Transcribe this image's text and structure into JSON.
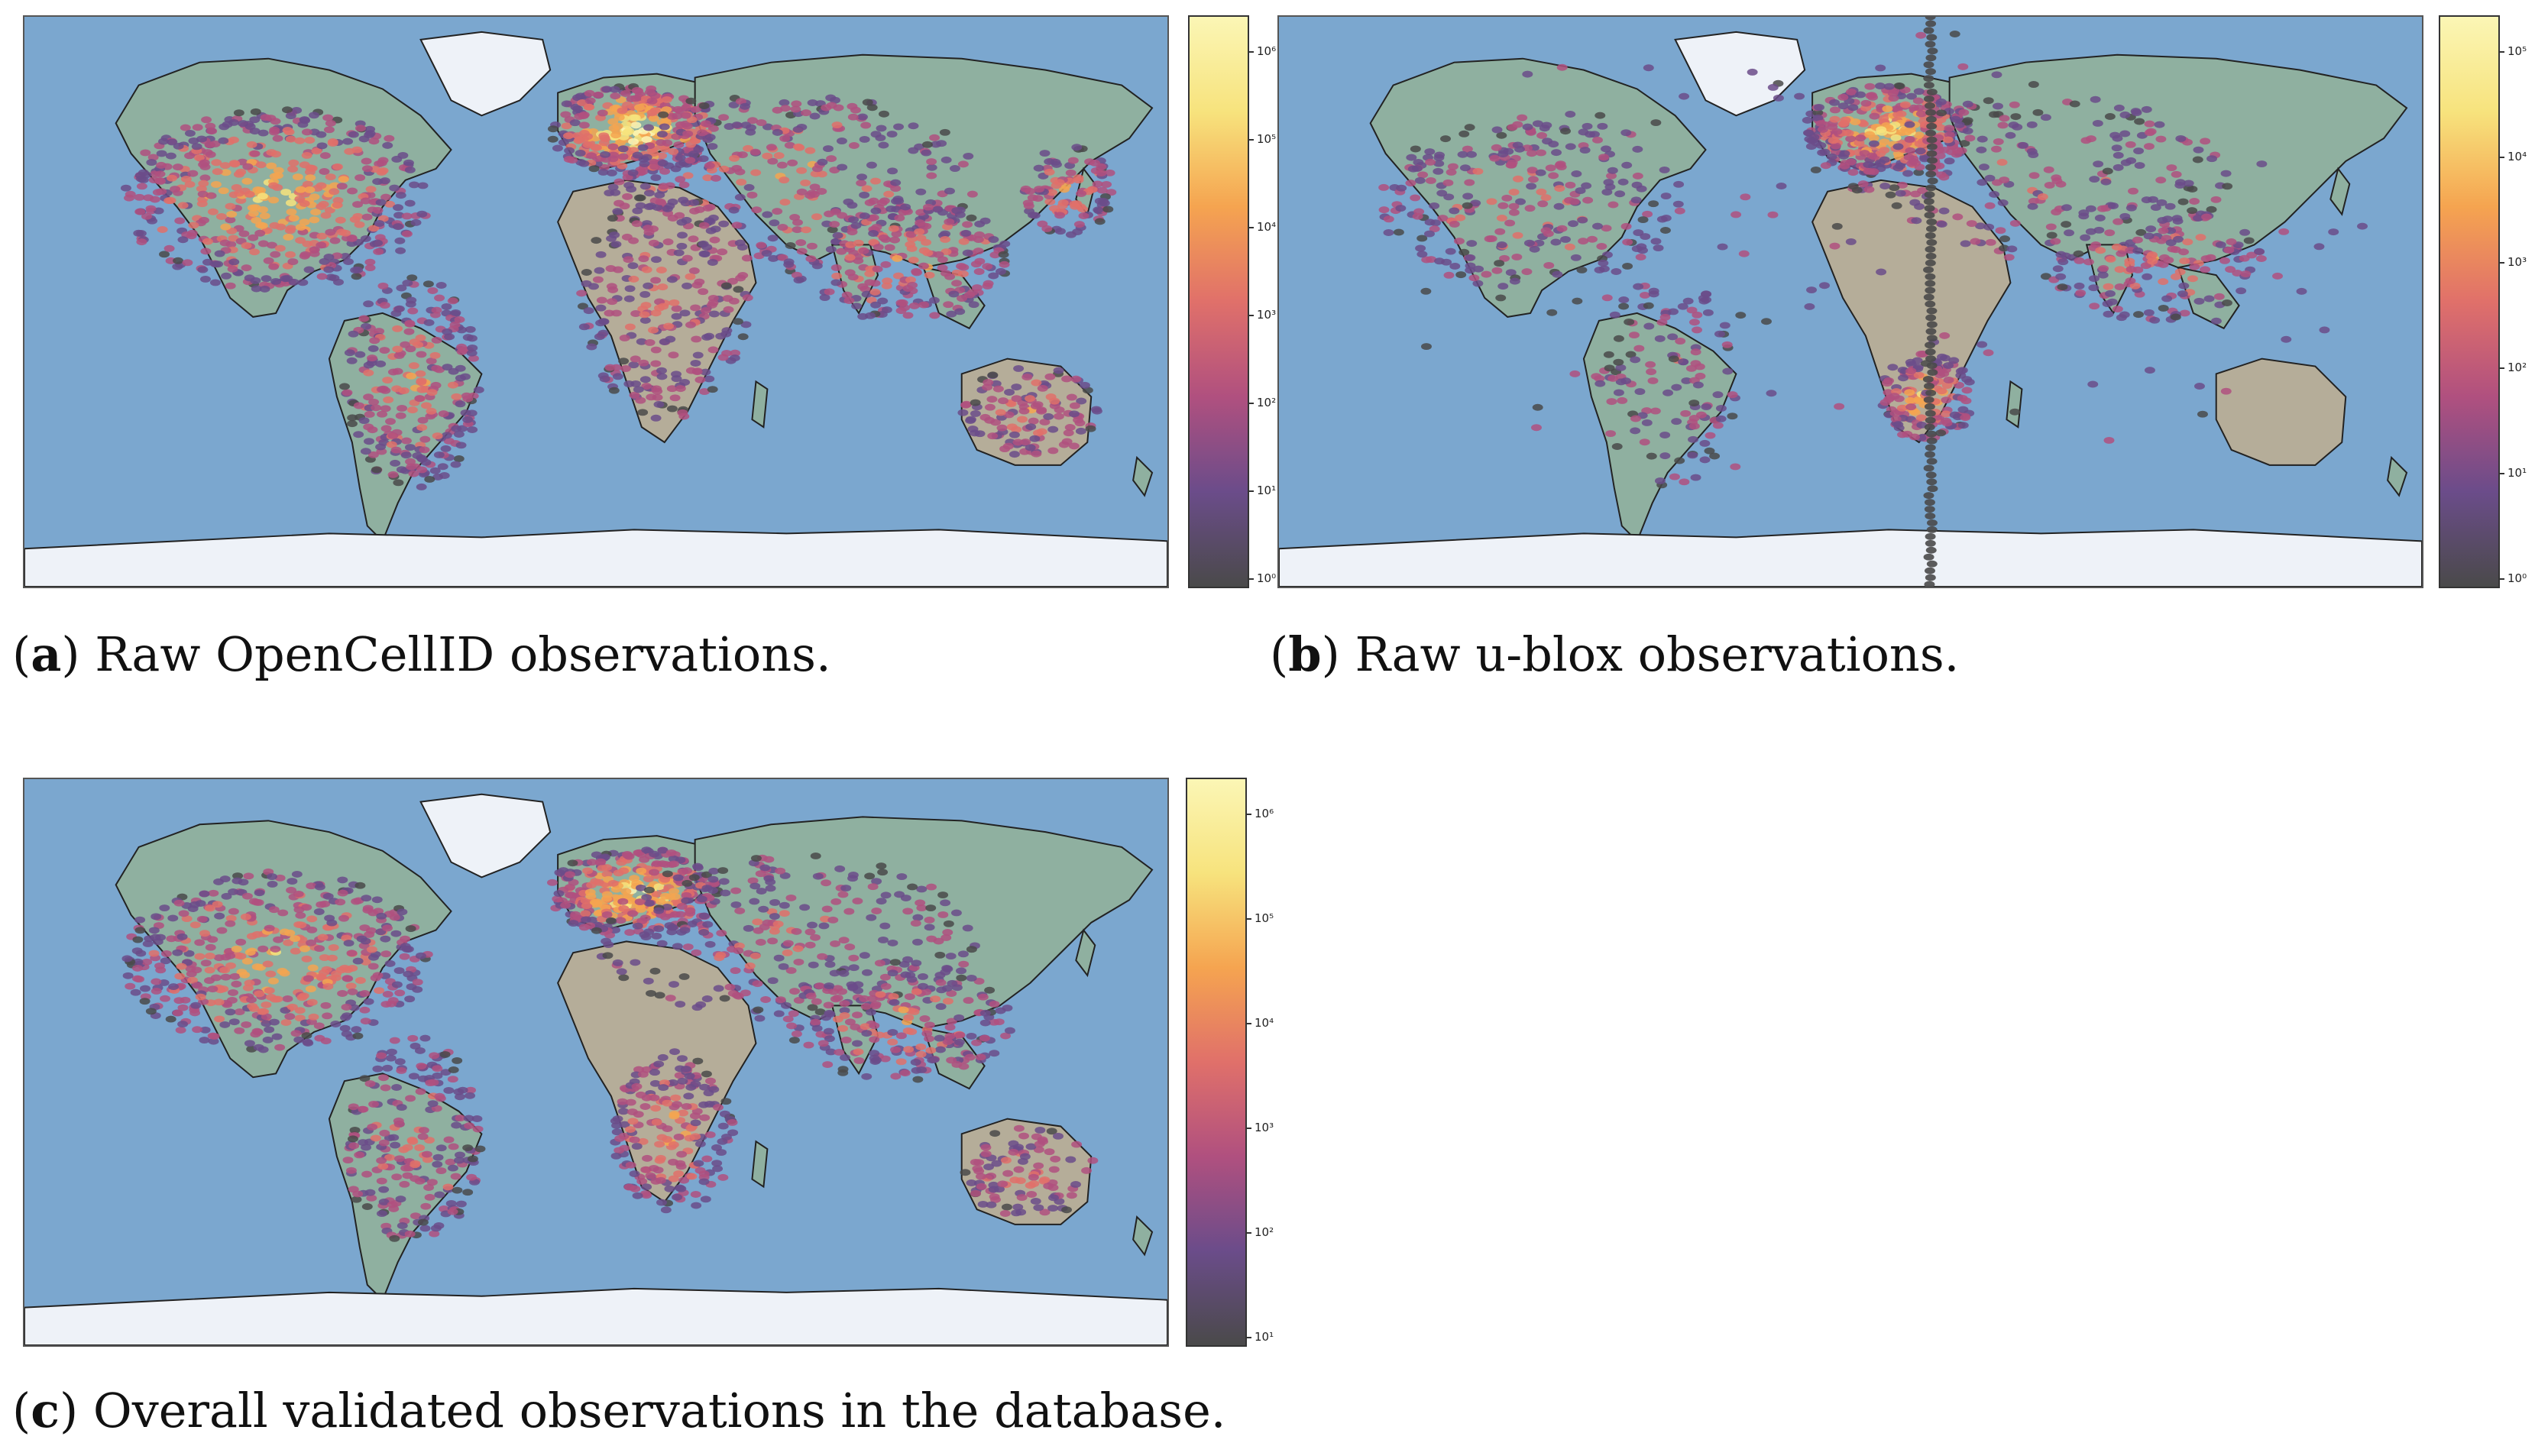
{
  "panels": [
    {
      "id": "a",
      "letter": "a",
      "caption_text": "Raw OpenCellID observations.",
      "colorbar": {
        "scale": "log",
        "ticks": [
          "10⁰",
          "10¹",
          "10²",
          "10³",
          "10⁴",
          "10⁵",
          "10⁶"
        ]
      }
    },
    {
      "id": "b",
      "letter": "b",
      "caption_text": "Raw u-blox observations.",
      "colorbar": {
        "scale": "log",
        "ticks": [
          "10⁰",
          "10¹",
          "10²",
          "10³",
          "10⁴",
          "10⁵"
        ]
      }
    },
    {
      "id": "c",
      "letter": "c",
      "caption_text": "Overall validated observations in the database.",
      "colorbar": {
        "scale": "log",
        "ticks": [
          "10¹",
          "10²",
          "10³",
          "10⁴",
          "10⁵",
          "10⁶"
        ]
      }
    }
  ],
  "colors": {
    "ocean": "#7ba7cf",
    "land": "#b5ad99",
    "vegetation": "#8fb0a0",
    "ice": "#eef2f8",
    "colormap": [
      "#4a4a4a",
      "#6b4c8a",
      "#b0507f",
      "#e0706a",
      "#f5a450",
      "#f7e37d",
      "#fbf6b5"
    ]
  }
}
